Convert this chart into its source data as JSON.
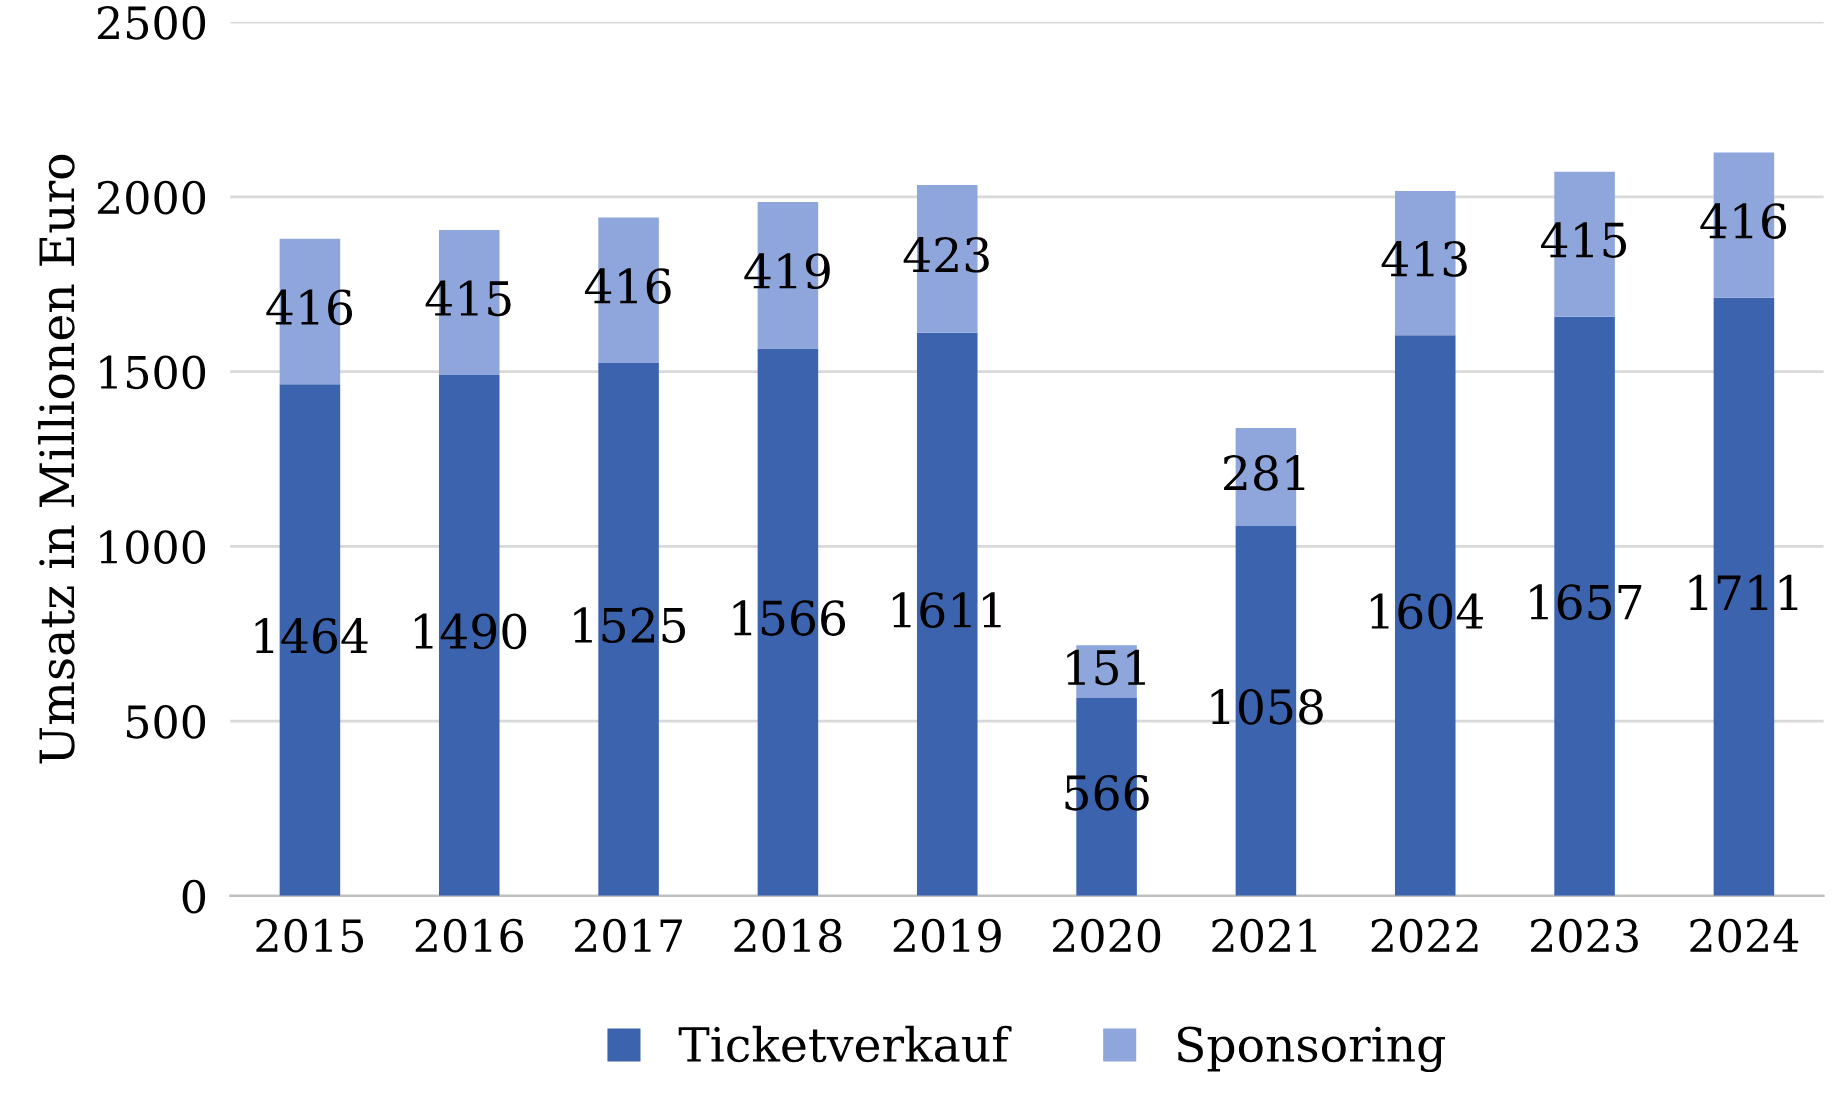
{
  "chart_data": {
    "type": "bar",
    "stacked": true,
    "ylabel": "Umsatz in Millionen Euro",
    "categories": [
      "2015",
      "2016",
      "2017",
      "2018",
      "2019",
      "2020",
      "2021",
      "2022",
      "2023",
      "2024"
    ],
    "series": [
      {
        "name": "Ticketverkauf",
        "color": "#3c63ad",
        "values": [
          1464,
          1490,
          1525,
          1566,
          1611,
          566,
          1058,
          1604,
          1657,
          1711
        ]
      },
      {
        "name": "Sponsoring",
        "color": "#8ea6db",
        "values": [
          416,
          415,
          416,
          419,
          423,
          151,
          281,
          413,
          415,
          416
        ]
      }
    ],
    "ylim": [
      0,
      2500
    ],
    "yticks": [
      0,
      500,
      1000,
      1500,
      2000,
      2500
    ],
    "grid": "y",
    "legend": "bottom",
    "data_labels": true
  }
}
